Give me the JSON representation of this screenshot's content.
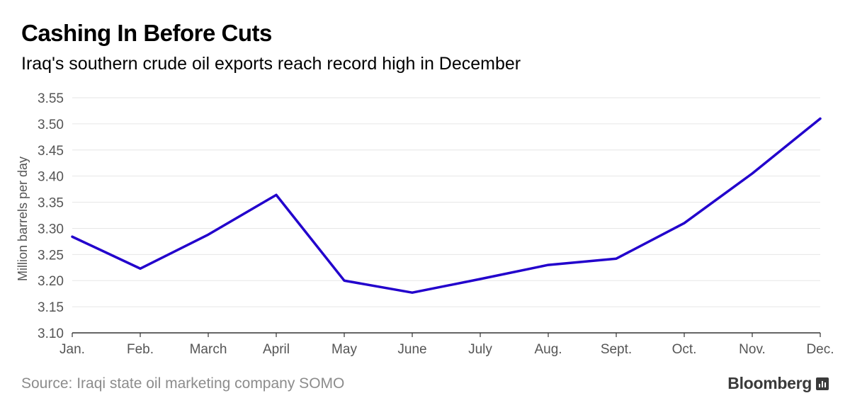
{
  "header": {
    "title": "Cashing In Before Cuts",
    "subtitle": "Iraq's southern crude oil exports reach record high in December"
  },
  "footer": {
    "source": "Source: Iraqi state oil marketing company SOMO",
    "brand": "Bloomberg",
    "brand_icon": "bloomberg-terminal-icon"
  },
  "colors": {
    "line": "#2200CC",
    "grid": "#e6e6e6",
    "axis": "#333333",
    "tick_label": "#555555"
  },
  "chart_data": {
    "type": "line",
    "categories": [
      "Jan.",
      "Feb.",
      "March",
      "April",
      "May",
      "June",
      "July",
      "Aug.",
      "Sept.",
      "Oct.",
      "Nov.",
      "Dec."
    ],
    "series": [
      {
        "values": [
          3.284,
          3.223,
          3.288,
          3.364,
          3.2,
          3.177,
          3.203,
          3.23,
          3.242,
          3.31,
          3.405,
          3.51
        ]
      }
    ],
    "ylabel": "Million barrels per day",
    "ylim": [
      3.1,
      3.55
    ],
    "yticks": [
      "3.10",
      "3.15",
      "3.20",
      "3.25",
      "3.30",
      "3.35",
      "3.40",
      "3.45",
      "3.50",
      "3.55"
    ],
    "grid": true
  }
}
